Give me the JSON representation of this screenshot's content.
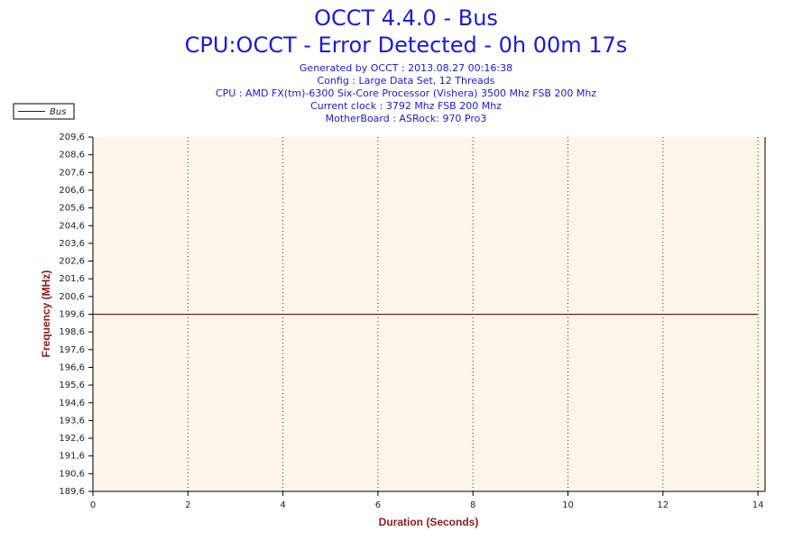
{
  "chart_data": {
    "type": "line",
    "title": "OCCT 4.4.0 - Bus",
    "subtitle": "CPU:OCCT - Error Detected - 0h 00m 17s",
    "info": [
      "Generated by OCCT : 2013.08.27 00:16:38",
      "Config : Large Data Set, 12 Threads",
      "CPU : AMD FX(tm)-6300 Six-Core Processor (Vishera) 3500 Mhz FSB 200 Mhz",
      "Current clock : 3792 Mhz FSB 200 Mhz",
      "MotherBoard : ASRock: 970 Pro3"
    ],
    "x_label": "Duration (Seconds)",
    "y_label": "Frequency (MHz)",
    "x": [
      0,
      1,
      2,
      3,
      4,
      5,
      6,
      7,
      8,
      9,
      10,
      11,
      12,
      13,
      14
    ],
    "series": [
      {
        "name": "Bus",
        "color": "#6b0000",
        "values": [
          199.6,
          199.6,
          199.6,
          199.6,
          199.6,
          199.6,
          199.6,
          199.6,
          199.6,
          199.6,
          199.6,
          199.6,
          199.6,
          199.6,
          199.6
        ]
      }
    ],
    "xlim": [
      0,
      14.15
    ],
    "xticks": [
      0,
      2,
      4,
      6,
      8,
      10,
      12,
      14
    ],
    "ylim": [
      189.6,
      209.6
    ],
    "yticks": [
      {
        "value": 189.6,
        "label": "189,6"
      },
      {
        "value": 190.6,
        "label": "190,6"
      },
      {
        "value": 191.6,
        "label": "191,6"
      },
      {
        "value": 192.6,
        "label": "192,6"
      },
      {
        "value": 193.6,
        "label": "193,6"
      },
      {
        "value": 194.6,
        "label": "194,6"
      },
      {
        "value": 195.6,
        "label": "195,6"
      },
      {
        "value": 196.6,
        "label": "196,6"
      },
      {
        "value": 197.6,
        "label": "197,6"
      },
      {
        "value": 198.6,
        "label": "198,6"
      },
      {
        "value": 199.6,
        "label": "199,6"
      },
      {
        "value": 200.6,
        "label": "200,6"
      },
      {
        "value": 201.6,
        "label": "201,6"
      },
      {
        "value": 202.6,
        "label": "202,6"
      },
      {
        "value": 203.6,
        "label": "203,6"
      },
      {
        "value": 204.6,
        "label": "204,6"
      },
      {
        "value": 205.6,
        "label": "205,6"
      },
      {
        "value": 206.6,
        "label": "206,6"
      },
      {
        "value": 207.6,
        "label": "207,6"
      },
      {
        "value": 208.6,
        "label": "208,6"
      },
      {
        "value": 209.6,
        "label": "209,6"
      }
    ],
    "grid": true,
    "legend": "upper left",
    "background": "#fdf5e8"
  }
}
